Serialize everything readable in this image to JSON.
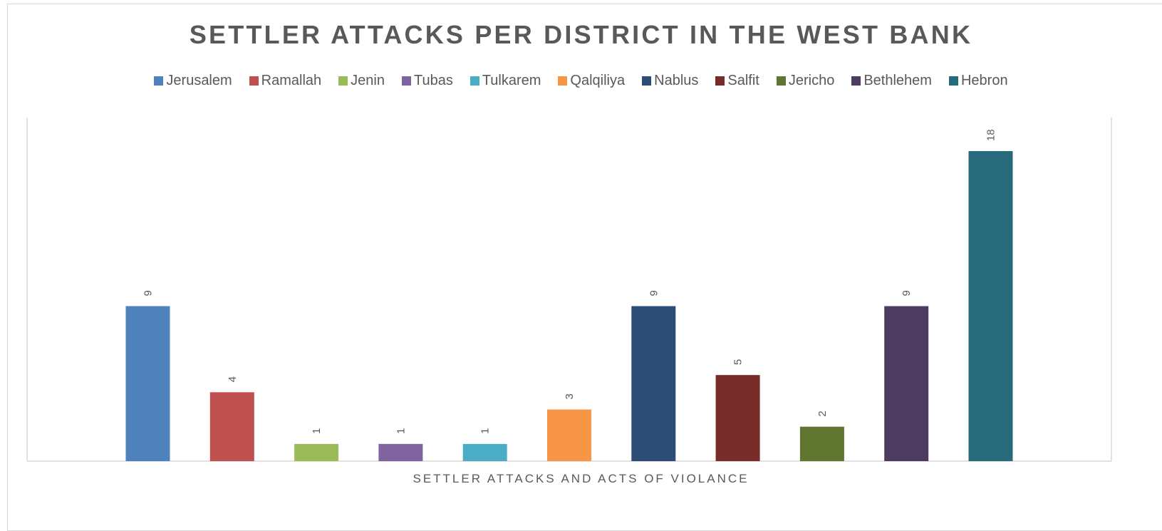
{
  "chart_data": {
    "type": "bar",
    "title": "SETTLER ATTACKS PER DISTRICT IN THE WEST BANK",
    "xlabel": "SETTLER ATTACKS AND ACTS OF VIOLANCE",
    "ylabel": "",
    "ylim": [
      0,
      20
    ],
    "grid": false,
    "legend_position": "top",
    "series": [
      {
        "name": "Jerusalem",
        "value": 9,
        "color": "#4F81BD"
      },
      {
        "name": "Ramallah",
        "value": 4,
        "color": "#C0504D"
      },
      {
        "name": "Jenin",
        "value": 1,
        "color": "#9BBB59"
      },
      {
        "name": "Tubas",
        "value": 1,
        "color": "#8064A2"
      },
      {
        "name": "Tulkarem",
        "value": 1,
        "color": "#4BACC6"
      },
      {
        "name": "Qalqiliya",
        "value": 3,
        "color": "#F79646"
      },
      {
        "name": "Nablus",
        "value": 9,
        "color": "#2C4D75"
      },
      {
        "name": "Salfit",
        "value": 5,
        "color": "#772C2A"
      },
      {
        "name": "Jericho",
        "value": 2,
        "color": "#5F7530"
      },
      {
        "name": "Bethlehem",
        "value": 9,
        "color": "#4D3B62"
      },
      {
        "name": "Hebron",
        "value": 18,
        "color": "#276A7C"
      }
    ]
  }
}
